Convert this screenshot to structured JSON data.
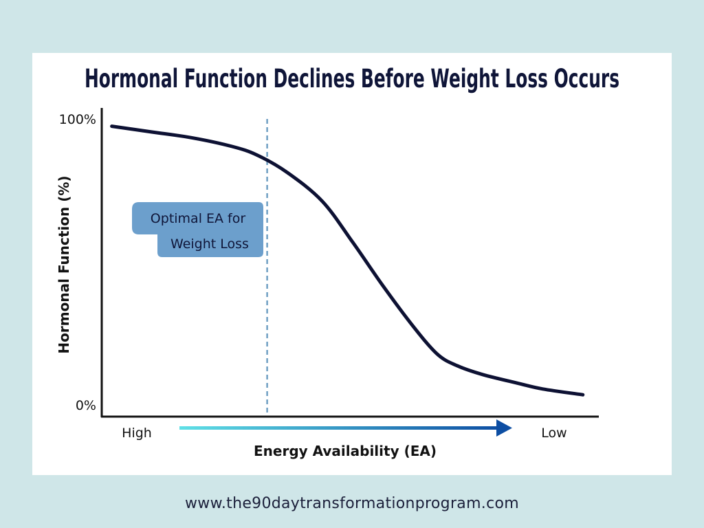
{
  "chart_data": {
    "type": "line",
    "title": "Hormonal Function Declines Before Weight Loss Occurs",
    "xlabel": "Energy Availability (EA)",
    "ylabel": "Hormonal Function (%)",
    "x_tick_labels": {
      "start": "High",
      "end": "Low"
    },
    "y_tick_labels": {
      "top": "100%",
      "bottom": "0%"
    },
    "xlim": [
      0,
      100
    ],
    "ylim": [
      0,
      100
    ],
    "series": [
      {
        "name": "Hormonal Function",
        "x": [
          2,
          10,
          18,
          26,
          31,
          37,
          44,
          50,
          56,
          62,
          67,
          71,
          76,
          83,
          88,
          96
        ],
        "y": [
          97,
          95,
          93,
          90,
          87,
          81,
          71,
          57,
          42,
          28,
          18,
          14,
          11,
          8,
          6,
          4
        ],
        "color": "#0d1133"
      }
    ],
    "reference_line": {
      "x": 33,
      "color": "#6f9fc3",
      "style": "dashed"
    },
    "annotation": {
      "line1": "Optimal EA for",
      "line2": "Weight Loss",
      "color": "#6c9fcc"
    },
    "axis_arrow": {
      "from_color": "#5fe0e6",
      "to_color": "#0d4ea3"
    }
  },
  "footer": {
    "url": "www.the90daytransformationprogram.com"
  }
}
